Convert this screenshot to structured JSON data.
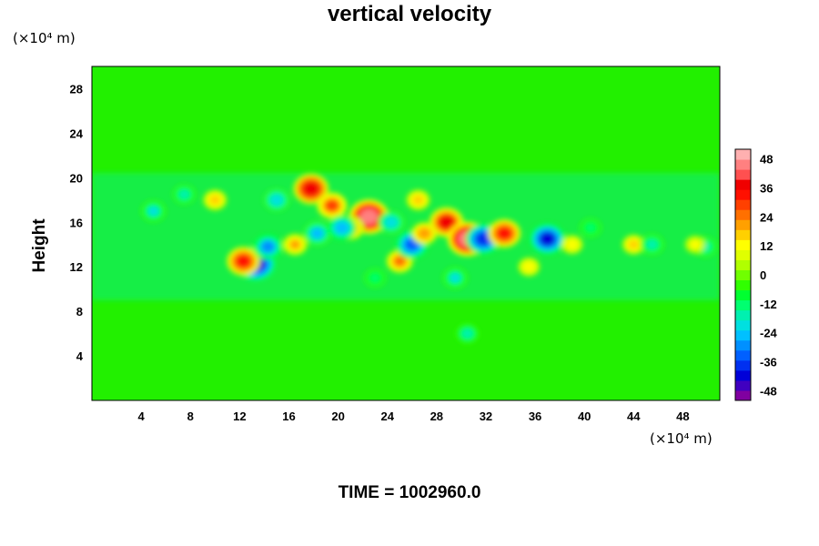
{
  "chart_data": {
    "type": "heatmap",
    "title": "vertical velocity",
    "ylabel": "Height",
    "x_unit": "(×10⁴ m)",
    "y_unit": "(×10⁴ m)",
    "x_ticks": [
      "4",
      "8",
      "12",
      "16",
      "20",
      "24",
      "28",
      "32",
      "36",
      "40",
      "44",
      "48"
    ],
    "y_ticks": [
      "4",
      "8",
      "12",
      "16",
      "20",
      "24",
      "28"
    ],
    "xlim": [
      0,
      51
    ],
    "ylim": [
      0,
      30
    ],
    "colorbar": {
      "ticks": [
        "48",
        "36",
        "24",
        "12",
        "0",
        "-12",
        "-24",
        "-36",
        "-48"
      ],
      "range": [
        -52,
        52
      ],
      "colors": [
        "#8000a0",
        "#4000c0",
        "#0000d8",
        "#0030f0",
        "#0060ff",
        "#0090ff",
        "#00c0ff",
        "#00e0e0",
        "#00f0b0",
        "#00ff70",
        "#00ff30",
        "#30ff00",
        "#70ff00",
        "#b0ff00",
        "#e0ff00",
        "#ffff00",
        "#ffd000",
        "#ffa000",
        "#ff7000",
        "#ff4000",
        "#ff1000",
        "#f00000",
        "#ff5050",
        "#ff8080",
        "#ffb0b0"
      ]
    },
    "features": [
      {
        "x": 13.3,
        "y": 12.3,
        "w": -48
      },
      {
        "x": 12.3,
        "y": 12.5,
        "w": 36
      },
      {
        "x": 14.3,
        "y": 13.8,
        "w": -30
      },
      {
        "x": 17.8,
        "y": 19.0,
        "w": 40
      },
      {
        "x": 19.5,
        "y": 17.5,
        "w": 30
      },
      {
        "x": 22.5,
        "y": 16.5,
        "w": 48
      },
      {
        "x": 21.0,
        "y": 15.5,
        "w": 25
      },
      {
        "x": 18.3,
        "y": 15.0,
        "w": -26
      },
      {
        "x": 20.3,
        "y": 15.5,
        "w": -28
      },
      {
        "x": 24.3,
        "y": 16.0,
        "w": -22
      },
      {
        "x": 25.0,
        "y": 12.5,
        "w": 24
      },
      {
        "x": 26.0,
        "y": 14.0,
        "w": -36
      },
      {
        "x": 27.0,
        "y": 15.0,
        "w": 22
      },
      {
        "x": 28.8,
        "y": 16.0,
        "w": 38
      },
      {
        "x": 30.5,
        "y": 14.5,
        "w": 48
      },
      {
        "x": 31.8,
        "y": 14.5,
        "w": -40
      },
      {
        "x": 33.5,
        "y": 15.0,
        "w": 35
      },
      {
        "x": 37.0,
        "y": 14.5,
        "w": -42
      },
      {
        "x": 29.5,
        "y": 11.0,
        "w": -20
      },
      {
        "x": 26.5,
        "y": 18.0,
        "w": 18
      },
      {
        "x": 10.0,
        "y": 18.0,
        "w": 18
      },
      {
        "x": 5.0,
        "y": 17.0,
        "w": -20
      },
      {
        "x": 7.5,
        "y": 18.5,
        "w": -16
      },
      {
        "x": 15.0,
        "y": 18.0,
        "w": -22
      },
      {
        "x": 16.5,
        "y": 14.0,
        "w": 20
      },
      {
        "x": 44.0,
        "y": 14.0,
        "w": 16
      },
      {
        "x": 45.5,
        "y": 14.0,
        "w": -18
      },
      {
        "x": 49.8,
        "y": 13.8,
        "w": -18
      },
      {
        "x": 49.0,
        "y": 14.0,
        "w": 12
      },
      {
        "x": 39.0,
        "y": 14.0,
        "w": 14
      },
      {
        "x": 40.5,
        "y": 15.5,
        "w": -14
      },
      {
        "x": 30.5,
        "y": 6.0,
        "w": -16
      },
      {
        "x": 23.0,
        "y": 11.0,
        "w": -14
      },
      {
        "x": 35.5,
        "y": 12.0,
        "w": 14
      }
    ]
  },
  "footer": {
    "time_label": "TIME = 1002960.0"
  }
}
